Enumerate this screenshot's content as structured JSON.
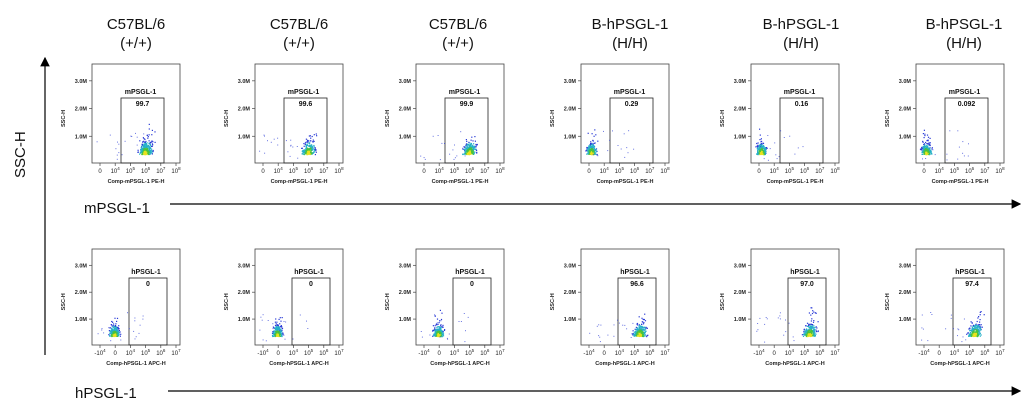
{
  "headers": [
    {
      "line1": "C57BL/6",
      "line2": "(+/+)"
    },
    {
      "line1": "C57BL/6",
      "line2": "(+/+)"
    },
    {
      "line1": "C57BL/6",
      "line2": "(+/+)"
    },
    {
      "line1": "B-hPSGL-1",
      "line2": "(H/H)"
    },
    {
      "line1": "B-hPSGL-1",
      "line2": "(H/H)"
    },
    {
      "line1": "B-hPSGL-1",
      "line2": "(H/H)"
    }
  ],
  "y_axis_label": "SSC-H",
  "row_labels": [
    "mPSGL-1",
    "hPSGL-1"
  ],
  "colors": {
    "low": "#2a3bd6",
    "mid": "#25b0c8",
    "high": "#49c33e",
    "peak": "#e8e21e"
  },
  "chart_data": [
    {
      "type": "scatter",
      "row": "mPSGL-1",
      "xlabel": "Comp-mPSGL-1 PE-H",
      "ylabel": "SSC-H",
      "yticks": [
        "1.0M",
        "2.0M",
        "3.0M"
      ],
      "xticks": [
        "0",
        "10^4",
        "10^5",
        "10^6",
        "10^7",
        "10^8"
      ],
      "gate": "mPSGL-1",
      "panels": [
        {
          "header": "C57BL/6 (+/+)",
          "gate_value": "99.7",
          "population": "gate-positive"
        },
        {
          "header": "C57BL/6 (+/+)",
          "gate_value": "99.6",
          "population": "gate-positive"
        },
        {
          "header": "C57BL/6 (+/+)",
          "gate_value": "99.9",
          "population": "gate-positive"
        },
        {
          "header": "B-hPSGL-1 (H/H)",
          "gate_value": "0.29",
          "population": "gate-negative"
        },
        {
          "header": "B-hPSGL-1 (H/H)",
          "gate_value": "0.16",
          "population": "gate-negative"
        },
        {
          "header": "B-hPSGL-1 (H/H)",
          "gate_value": "0.092",
          "population": "gate-negative"
        }
      ]
    },
    {
      "type": "scatter",
      "row": "hPSGL-1",
      "xlabel": "Comp-hPSGL-1 APC-H",
      "ylabel": "SSC-H",
      "yticks": [
        "1.0M",
        "2.0M",
        "3.0M"
      ],
      "xticks": [
        "-10^4",
        "0",
        "10^4",
        "10^5",
        "10^6",
        "10^7"
      ],
      "gate": "hPSGL-1",
      "panels": [
        {
          "header": "C57BL/6 (+/+)",
          "gate_value": "0",
          "population": "gate-negative"
        },
        {
          "header": "C57BL/6 (+/+)",
          "gate_value": "0",
          "population": "gate-negative"
        },
        {
          "header": "C57BL/6 (+/+)",
          "gate_value": "0",
          "population": "gate-negative"
        },
        {
          "header": "B-hPSGL-1 (H/H)",
          "gate_value": "96.6",
          "population": "gate-positive"
        },
        {
          "header": "B-hPSGL-1 (H/H)",
          "gate_value": "97.0",
          "population": "gate-positive"
        },
        {
          "header": "B-hPSGL-1 (H/H)",
          "gate_value": "97.4",
          "population": "gate-positive"
        }
      ]
    }
  ]
}
